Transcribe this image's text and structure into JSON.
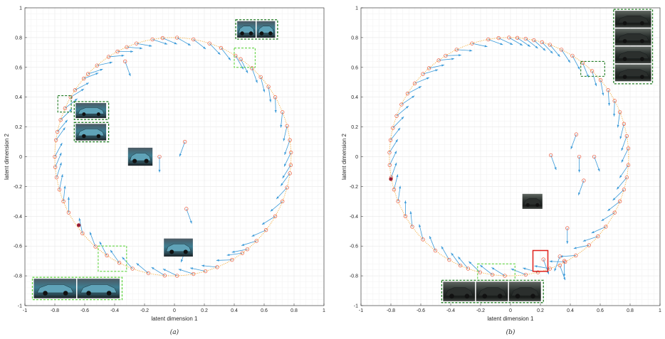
{
  "chart_data": [
    {
      "type": "scatter",
      "caption": "(a)",
      "xlabel": "latent dimension 1",
      "ylabel": "latent dimension 2",
      "xlim": [
        -1,
        1
      ],
      "ylim": [
        -1,
        1
      ],
      "xticks": [
        "-1",
        "-0.8",
        "-0.6",
        "-0.4",
        "-0.2",
        "0",
        "0.2",
        "0.4",
        "0.6",
        "0.8",
        "1"
      ],
      "yticks": [
        "-1",
        "-0.8",
        "-0.6",
        "-0.4",
        "-0.2",
        "0",
        "0.2",
        "0.4",
        "0.6",
        "0.8",
        "1"
      ],
      "grid": true,
      "ring": {
        "cx": -0.01,
        "cy": 0.0,
        "rx": 0.79,
        "ry": 0.8
      },
      "ring_points_deg": [
        95,
        100,
        108,
        113,
        118,
        123,
        130,
        136,
        139,
        146,
        150,
        156,
        162,
        168,
        172,
        180,
        185,
        190,
        196,
        202,
        208,
        220,
        229,
        236,
        243,
        250,
        258,
        266,
        272,
        280,
        286,
        292,
        300,
        306,
        309,
        315,
        322,
        330,
        338,
        345,
        352,
        356,
        2,
        8,
        15,
        22,
        30,
        36,
        42,
        48,
        55,
        58,
        66,
        72,
        80,
        88
      ],
      "inner_points": [
        [
          -0.33,
          0.64
        ],
        [
          0.07,
          0.1
        ],
        [
          -0.1,
          0.0
        ],
        [
          0.08,
          -0.35
        ],
        [
          0.08,
          -0.61
        ]
      ],
      "highlight_point": [
        -0.64,
        -0.46
      ],
      "arrow_shift_deg": 28,
      "boxes": [
        {
          "x0": 0.4,
          "y0": 0.6,
          "x1": 0.54,
          "y1": 0.73,
          "style": "light"
        },
        {
          "x0": -0.78,
          "y0": 0.3,
          "x1": -0.69,
          "y1": 0.41,
          "style": "dark"
        },
        {
          "x0": -0.51,
          "y0": -0.77,
          "x1": -0.32,
          "y1": -0.6,
          "style": "light"
        }
      ],
      "thumbs": [
        {
          "x0": 0.41,
          "y0": 0.79,
          "x1": 0.69,
          "y1": 0.92,
          "frames": 2,
          "tone": "blue",
          "box": "dark"
        },
        {
          "x0": -0.67,
          "y0": 0.25,
          "x1": -0.44,
          "y1": 0.37,
          "frames": 1,
          "tone": "blue",
          "box": "dark"
        },
        {
          "x0": -0.67,
          "y0": 0.1,
          "x1": -0.44,
          "y1": 0.23,
          "frames": 1,
          "tone": "blue",
          "box": "dark"
        },
        {
          "x0": -0.32,
          "y0": -0.07,
          "x1": -0.13,
          "y1": 0.07,
          "frames": 1,
          "tone": "blue",
          "box": "none"
        },
        {
          "x0": -0.08,
          "y0": -0.68,
          "x1": 0.14,
          "y1": -0.54,
          "frames": 1,
          "tone": "blue",
          "box": "none"
        },
        {
          "x0": -0.95,
          "y0": -0.96,
          "x1": -0.35,
          "y1": -0.81,
          "frames": 2,
          "tone": "blue",
          "box": "light"
        }
      ]
    },
    {
      "type": "scatter",
      "caption": "(b)",
      "xlabel": "latent dimension 1",
      "ylabel": "latent dimension 2",
      "xlim": [
        -1,
        1
      ],
      "ylim": [
        -1,
        1
      ],
      "xticks": [
        "-1",
        "-0.8",
        "-0.6",
        "-0.4",
        "-0.2",
        "0",
        "0.2",
        "0.4",
        "0.6",
        "0.8",
        "1"
      ],
      "yticks": [
        "-1",
        "-0.8",
        "-0.6",
        "-0.4",
        "-0.2",
        "0",
        "0.2",
        "0.4",
        "0.6",
        "0.8",
        "1"
      ],
      "grid": true,
      "ring": {
        "cx": -0.01,
        "cy": 0.0,
        "rx": 0.8,
        "ry": 0.8
      },
      "ring_points_deg": [
        78,
        82,
        86,
        90,
        95,
        100,
        108,
        116,
        122,
        126,
        132,
        136,
        142,
        148,
        154,
        160,
        166,
        172,
        178,
        184,
        190,
        196,
        202,
        210,
        216,
        224,
        232,
        240,
        246,
        250,
        256,
        262,
        268,
        278,
        284,
        290,
        298,
        304,
        312,
        318,
        324,
        332,
        338,
        344,
        350,
        356,
        4,
        10,
        16,
        22,
        28,
        34,
        40,
        46,
        52,
        58,
        64,
        70,
        74
      ],
      "inner_points": [
        [
          0.27,
          0.01
        ],
        [
          0.44,
          0.15
        ],
        [
          0.46,
          0.0
        ],
        [
          0.56,
          0.0
        ],
        [
          0.49,
          -0.16
        ],
        [
          0.38,
          -0.48
        ],
        [
          0.22,
          -0.69
        ],
        [
          0.33,
          -0.67
        ],
        [
          0.36,
          -0.7
        ],
        [
          0.33,
          -0.73
        ]
      ],
      "highlight_point": [
        -0.8,
        -0.15
      ],
      "arrow_shift_deg": 30,
      "boxes": [
        {
          "x0": 0.47,
          "y0": 0.54,
          "x1": 0.63,
          "y1": 0.64,
          "style": "dark"
        },
        {
          "x0": -0.22,
          "y0": -0.83,
          "x1": 0.03,
          "y1": -0.72,
          "style": "light"
        },
        {
          "x0": 0.15,
          "y0": -0.77,
          "x1": 0.25,
          "y1": -0.63,
          "style": "red"
        }
      ],
      "thumbs": [
        {
          "x0": 0.69,
          "y0": 0.49,
          "x1": 0.95,
          "y1": 0.99,
          "frames": 4,
          "tone": "dark",
          "box": "dark",
          "vertical": true
        },
        {
          "x0": 0.07,
          "y0": -0.36,
          "x1": 0.23,
          "y1": -0.24,
          "frames": 1,
          "tone": "dark",
          "box": "none"
        },
        {
          "x0": -0.46,
          "y0": -0.98,
          "x1": 0.22,
          "y1": -0.83,
          "frames": 3,
          "tone": "dark",
          "box": "dark"
        }
      ]
    }
  ]
}
